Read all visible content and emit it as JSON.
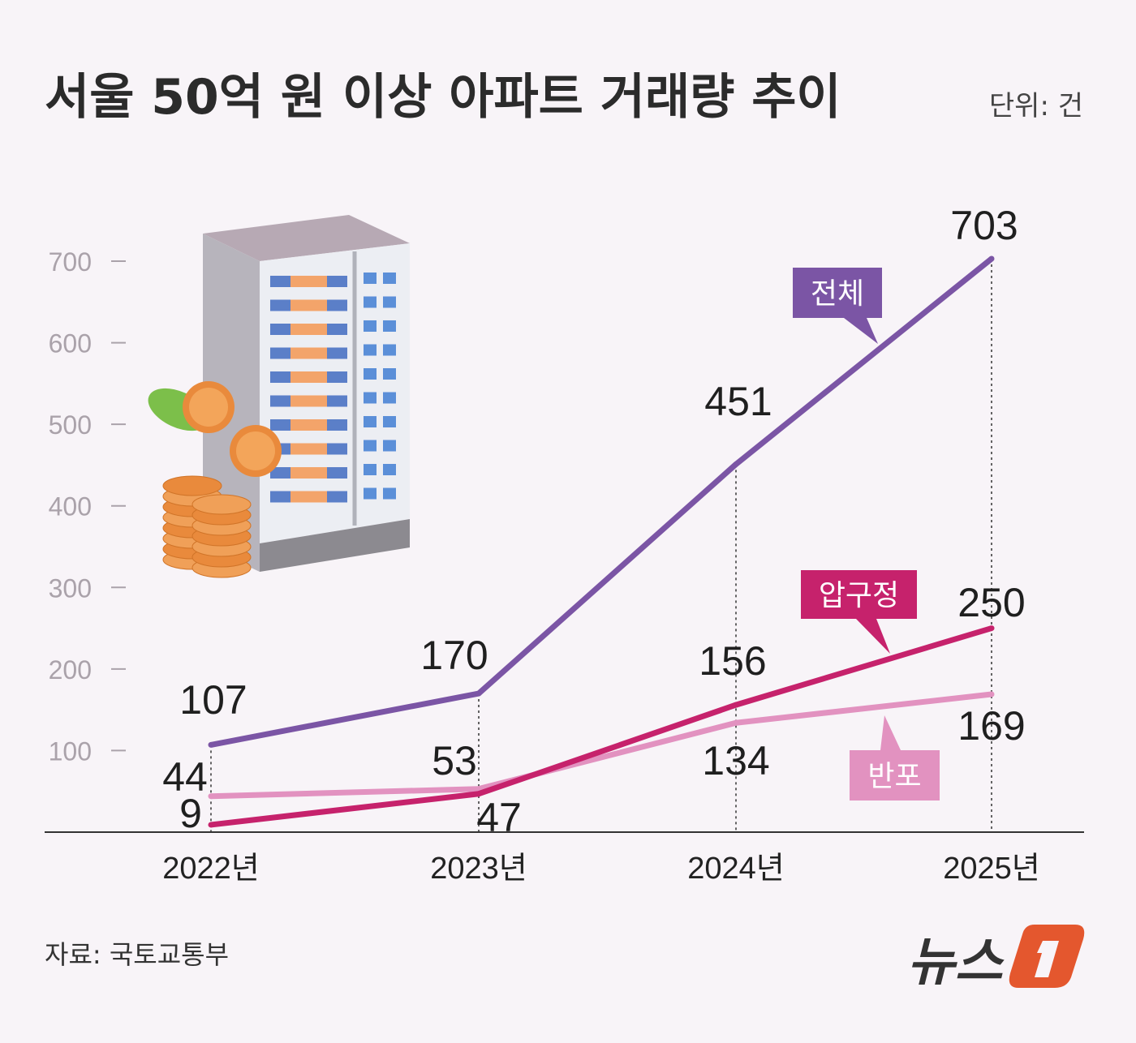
{
  "title": "서울 50억 원 이상 아파트 거래량 추이",
  "unit": "단위: 건",
  "source": "자료: 국토교통부",
  "logo": {
    "text": "뉴스1",
    "colors": {
      "text": "#333333",
      "badge": "#e4572e"
    }
  },
  "chart_data": {
    "type": "line",
    "title": "서울 50억 원 이상 아파트 거래량 추이",
    "categories": [
      "2022년",
      "2023년",
      "2024년",
      "2025년"
    ],
    "yticks": [
      100,
      200,
      300,
      400,
      500,
      600,
      700
    ],
    "ylim": [
      0,
      700
    ],
    "grid": false,
    "series": [
      {
        "name": "전체",
        "color": "#7b55a5",
        "values": [
          107,
          170,
          451,
          703
        ]
      },
      {
        "name": "압구정",
        "color": "#c6226c",
        "values": [
          9,
          47,
          156,
          250
        ]
      },
      {
        "name": "반포",
        "color": "#e292c0",
        "values": [
          44,
          53,
          134,
          169
        ]
      }
    ]
  }
}
